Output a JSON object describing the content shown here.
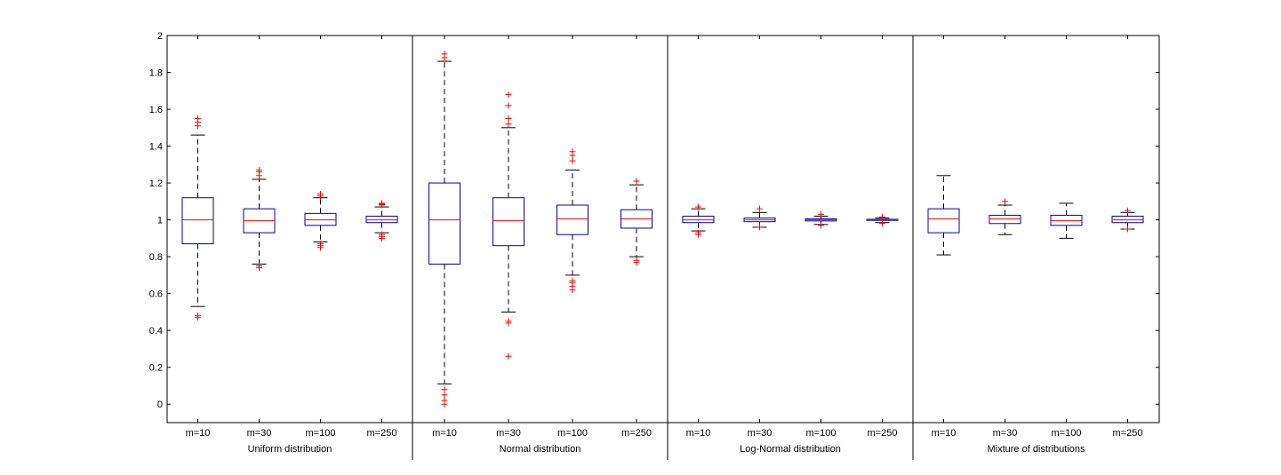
{
  "chart_data": {
    "type": "boxplot",
    "title": "",
    "xlabel": "",
    "ylabel": "",
    "ylim": [
      -0.1,
      2.0
    ],
    "yticks": [
      "2",
      "1.8",
      "1.6",
      "1.4",
      "1.2",
      "1",
      "0.8",
      "0.6",
      "0.4",
      "0.2",
      "0"
    ],
    "ytick_values": [
      2,
      1.8,
      1.6,
      1.4,
      1.2,
      1,
      0.8,
      0.6,
      0.4,
      0.2,
      0
    ],
    "categories": [
      "m=10",
      "m=30",
      "m=100",
      "m=250"
    ],
    "groups": [
      {
        "label": "Uniform distribution",
        "boxes": [
          {
            "category": "m=10",
            "lw": 0.53,
            "q1": 0.87,
            "median": 1.0,
            "q3": 1.12,
            "uw": 1.46,
            "outliers": [
              0.47,
              0.48,
              1.51,
              1.53,
              1.55
            ]
          },
          {
            "category": "m=30",
            "lw": 0.76,
            "q1": 0.93,
            "median": 0.995,
            "q3": 1.06,
            "uw": 1.22,
            "outliers": [
              0.74,
              0.75,
              1.24,
              1.26,
              1.27
            ]
          },
          {
            "category": "m=100",
            "lw": 0.88,
            "q1": 0.97,
            "median": 1.0,
            "q3": 1.035,
            "uw": 1.12,
            "outliers": [
              0.85,
              0.86,
              0.87,
              1.13,
              1.14
            ]
          },
          {
            "category": "m=250",
            "lw": 0.93,
            "q1": 0.985,
            "median": 1.0,
            "q3": 1.02,
            "uw": 1.07,
            "outliers": [
              0.9,
              0.91,
              0.92,
              1.08,
              1.085,
              1.09
            ]
          }
        ]
      },
      {
        "label": "Normal distribution",
        "boxes": [
          {
            "category": "m=10",
            "lw": 0.11,
            "q1": 0.76,
            "median": 1.0,
            "q3": 1.2,
            "uw": 1.86,
            "outliers": [
              0.0,
              0.02,
              0.05,
              0.08,
              1.88,
              1.9
            ]
          },
          {
            "category": "m=30",
            "lw": 0.5,
            "q1": 0.86,
            "median": 0.995,
            "q3": 1.12,
            "uw": 1.5,
            "outliers": [
              0.26,
              0.44,
              0.45,
              1.52,
              1.55,
              1.62,
              1.68
            ]
          },
          {
            "category": "m=100",
            "lw": 0.7,
            "q1": 0.92,
            "median": 1.005,
            "q3": 1.08,
            "uw": 1.27,
            "outliers": [
              0.62,
              0.64,
              0.66,
              0.67,
              1.32,
              1.35,
              1.37
            ]
          },
          {
            "category": "m=250",
            "lw": 0.8,
            "q1": 0.955,
            "median": 1.005,
            "q3": 1.055,
            "uw": 1.19,
            "outliers": [
              0.77,
              0.78,
              1.21
            ]
          }
        ]
      },
      {
        "label": "Log-Normal distribution",
        "boxes": [
          {
            "category": "m=10",
            "lw": 0.94,
            "q1": 0.985,
            "median": 1.0,
            "q3": 1.02,
            "uw": 1.06,
            "outliers": [
              0.92,
              0.93,
              1.07
            ]
          },
          {
            "category": "m=30",
            "lw": 0.96,
            "q1": 0.99,
            "median": 1.0,
            "q3": 1.01,
            "uw": 1.04,
            "outliers": [
              0.96,
              1.06
            ]
          },
          {
            "category": "m=100",
            "lw": 0.975,
            "q1": 0.994,
            "median": 1.0,
            "q3": 1.006,
            "uw": 1.02,
            "outliers": [
              0.97,
              1.03
            ]
          },
          {
            "category": "m=250",
            "lw": 0.985,
            "q1": 0.997,
            "median": 1.0,
            "q3": 1.003,
            "uw": 1.01,
            "outliers": [
              0.98,
              1.015
            ]
          }
        ]
      },
      {
        "label": "Mixture of distributions",
        "boxes": [
          {
            "category": "m=10",
            "lw": 0.81,
            "q1": 0.93,
            "median": 1.005,
            "q3": 1.06,
            "uw": 1.24,
            "outliers": []
          },
          {
            "category": "m=30",
            "lw": 0.92,
            "q1": 0.98,
            "median": 1.005,
            "q3": 1.025,
            "uw": 1.08,
            "outliers": [
              1.1
            ]
          },
          {
            "category": "m=100",
            "lw": 0.9,
            "q1": 0.97,
            "median": 0.995,
            "q3": 1.025,
            "uw": 1.09,
            "outliers": []
          },
          {
            "category": "m=250",
            "lw": 0.95,
            "q1": 0.985,
            "median": 1.0,
            "q3": 1.02,
            "uw": 1.04,
            "outliers": [
              0.95,
              1.05
            ]
          }
        ]
      }
    ],
    "colors": {
      "box": "#0000aa",
      "median": "#ff0000",
      "whisker": "#000000",
      "outlier": "#ff0000",
      "axis": "#000000",
      "background": "#ffffff"
    }
  }
}
